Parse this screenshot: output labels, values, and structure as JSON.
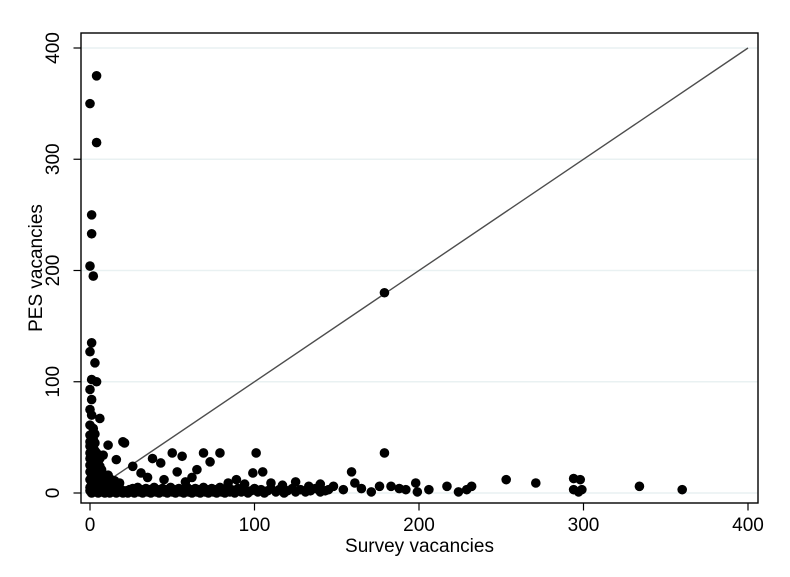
{
  "figure": {
    "background_color": "#ffffff"
  },
  "chart_data": {
    "type": "scatter",
    "title": "",
    "xlabel": "Survey vacancies",
    "ylabel": "PES vacancies",
    "x_ticks": [
      0,
      100,
      200,
      300,
      400
    ],
    "y_ticks": [
      0,
      100,
      200,
      300,
      400
    ],
    "xlim": [
      -5.5,
      406
    ],
    "ylim": [
      -9,
      413
    ],
    "grid": "horizontal-only",
    "legend": "none",
    "colors": {
      "marker": "#000000",
      "reference_line": "#4d4d4d",
      "gridline": "#e9f1f2",
      "axis": "#000000",
      "text": "#000000",
      "plot_background": "#ffffff"
    },
    "reference_line": {
      "from": [
        0,
        0
      ],
      "to": [
        400,
        400
      ],
      "meaning": "45-degree line"
    },
    "points": [
      [
        4,
        375
      ],
      [
        0,
        350
      ],
      [
        4,
        315
      ],
      [
        1,
        250
      ],
      [
        1,
        233
      ],
      [
        0,
        204
      ],
      [
        2,
        195
      ],
      [
        1,
        135
      ],
      [
        0,
        127
      ],
      [
        3,
        117
      ],
      [
        1,
        102
      ],
      [
        4,
        100
      ],
      [
        0,
        93
      ],
      [
        1,
        84
      ],
      [
        0,
        75
      ],
      [
        1,
        70
      ],
      [
        6,
        67
      ],
      [
        0,
        61
      ],
      [
        2,
        58
      ],
      [
        3,
        53
      ],
      [
        0,
        52
      ],
      [
        1,
        50
      ],
      [
        2,
        48
      ],
      [
        0,
        46
      ],
      [
        1,
        44
      ],
      [
        3,
        45
      ],
      [
        0,
        42
      ],
      [
        2,
        41
      ],
      [
        1,
        39
      ],
      [
        3,
        38
      ],
      [
        0,
        36
      ],
      [
        2,
        35
      ],
      [
        4,
        36
      ],
      [
        1,
        33
      ],
      [
        3,
        32
      ],
      [
        0,
        31
      ],
      [
        2,
        29
      ],
      [
        4,
        30
      ],
      [
        6,
        31
      ],
      [
        1,
        27
      ],
      [
        3,
        26
      ],
      [
        5,
        27
      ],
      [
        0,
        25
      ],
      [
        2,
        24
      ],
      [
        4,
        23
      ],
      [
        6,
        24
      ],
      [
        1,
        22
      ],
      [
        3,
        21
      ],
      [
        5,
        20
      ],
      [
        7,
        21
      ],
      [
        0,
        19
      ],
      [
        2,
        18
      ],
      [
        4,
        17
      ],
      [
        6,
        16
      ],
      [
        8,
        17
      ],
      [
        1,
        15
      ],
      [
        3,
        14
      ],
      [
        5,
        13
      ],
      [
        7,
        14
      ],
      [
        9,
        15
      ],
      [
        11,
        16
      ],
      [
        0,
        12
      ],
      [
        2,
        11
      ],
      [
        4,
        10
      ],
      [
        6,
        11
      ],
      [
        8,
        10
      ],
      [
        10,
        12
      ],
      [
        12,
        13
      ],
      [
        1,
        8
      ],
      [
        3,
        9
      ],
      [
        5,
        7
      ],
      [
        7,
        8
      ],
      [
        9,
        9
      ],
      [
        11,
        7
      ],
      [
        13,
        9
      ],
      [
        15,
        11
      ],
      [
        0,
        5
      ],
      [
        2,
        6
      ],
      [
        4,
        4
      ],
      [
        6,
        5
      ],
      [
        8,
        6
      ],
      [
        10,
        4
      ],
      [
        12,
        5
      ],
      [
        14,
        6
      ],
      [
        16,
        8
      ],
      [
        18,
        9
      ],
      [
        0,
        2
      ],
      [
        1,
        0
      ],
      [
        2,
        3
      ],
      [
        3,
        1
      ],
      [
        4,
        2
      ],
      [
        5,
        0
      ],
      [
        6,
        3
      ],
      [
        7,
        1
      ],
      [
        8,
        2
      ],
      [
        9,
        0
      ],
      [
        10,
        1
      ],
      [
        11,
        3
      ],
      [
        12,
        0
      ],
      [
        13,
        2
      ],
      [
        14,
        1
      ],
      [
        15,
        3
      ],
      [
        16,
        0
      ],
      [
        17,
        2
      ],
      [
        18,
        1
      ],
      [
        19,
        3
      ],
      [
        20,
        0
      ],
      [
        20,
        46
      ],
      [
        21,
        45
      ],
      [
        11,
        43
      ],
      [
        8,
        34
      ],
      [
        16,
        30
      ],
      [
        26,
        24
      ],
      [
        31,
        18
      ],
      [
        35,
        14
      ],
      [
        38,
        31
      ],
      [
        43,
        27
      ],
      [
        45,
        12
      ],
      [
        50,
        36
      ],
      [
        53,
        19
      ],
      [
        56,
        33
      ],
      [
        58,
        10
      ],
      [
        62,
        14
      ],
      [
        65,
        21
      ],
      [
        69,
        36
      ],
      [
        73,
        28
      ],
      [
        79,
        36
      ],
      [
        84,
        9
      ],
      [
        89,
        12
      ],
      [
        94,
        8
      ],
      [
        99,
        18
      ],
      [
        101,
        36
      ],
      [
        105,
        19
      ],
      [
        110,
        9
      ],
      [
        117,
        7
      ],
      [
        125,
        10
      ],
      [
        133,
        6
      ],
      [
        140,
        8
      ],
      [
        22,
        2
      ],
      [
        23,
        0
      ],
      [
        24,
        3
      ],
      [
        25,
        1
      ],
      [
        26,
        4
      ],
      [
        27,
        0
      ],
      [
        28,
        2
      ],
      [
        29,
        5
      ],
      [
        30,
        1
      ],
      [
        31,
        3
      ],
      [
        32,
        0
      ],
      [
        33,
        2
      ],
      [
        34,
        4
      ],
      [
        35,
        1
      ],
      [
        36,
        3
      ],
      [
        37,
        0
      ],
      [
        38,
        2
      ],
      [
        39,
        5
      ],
      [
        40,
        1
      ],
      [
        41,
        3
      ],
      [
        42,
        0
      ],
      [
        43,
        2
      ],
      [
        44,
        4
      ],
      [
        45,
        1
      ],
      [
        46,
        3
      ],
      [
        47,
        0
      ],
      [
        48,
        2
      ],
      [
        49,
        5
      ],
      [
        50,
        1
      ],
      [
        51,
        3
      ],
      [
        52,
        0
      ],
      [
        53,
        2
      ],
      [
        54,
        4
      ],
      [
        55,
        1
      ],
      [
        56,
        3
      ],
      [
        57,
        0
      ],
      [
        58,
        2
      ],
      [
        59,
        5
      ],
      [
        60,
        1
      ],
      [
        61,
        3
      ],
      [
        62,
        0
      ],
      [
        63,
        2
      ],
      [
        64,
        4
      ],
      [
        65,
        1
      ],
      [
        66,
        3
      ],
      [
        67,
        0
      ],
      [
        68,
        2
      ],
      [
        69,
        5
      ],
      [
        70,
        1
      ],
      [
        71,
        3
      ],
      [
        72,
        0
      ],
      [
        73,
        2
      ],
      [
        74,
        4
      ],
      [
        75,
        1
      ],
      [
        76,
        3
      ],
      [
        77,
        0
      ],
      [
        78,
        2
      ],
      [
        79,
        5
      ],
      [
        80,
        1
      ],
      [
        81,
        3
      ],
      [
        82,
        0
      ],
      [
        83,
        2
      ],
      [
        84,
        4
      ],
      [
        85,
        1
      ],
      [
        86,
        3
      ],
      [
        88,
        0
      ],
      [
        89,
        2
      ],
      [
        90,
        4
      ],
      [
        92,
        1
      ],
      [
        94,
        3
      ],
      [
        96,
        0
      ],
      [
        98,
        2
      ],
      [
        100,
        4
      ],
      [
        102,
        1
      ],
      [
        104,
        3
      ],
      [
        106,
        0
      ],
      [
        108,
        2
      ],
      [
        110,
        4
      ],
      [
        113,
        1
      ],
      [
        115,
        3
      ],
      [
        118,
        0
      ],
      [
        120,
        2
      ],
      [
        123,
        4
      ],
      [
        125,
        1
      ],
      [
        128,
        3
      ],
      [
        131,
        1
      ],
      [
        134,
        2
      ],
      [
        137,
        4
      ],
      [
        140,
        1
      ],
      [
        143,
        2
      ],
      [
        145,
        3
      ],
      [
        148,
        6
      ],
      [
        154,
        3
      ],
      [
        159,
        19
      ],
      [
        161,
        9
      ],
      [
        165,
        4
      ],
      [
        171,
        1
      ],
      [
        176,
        6
      ],
      [
        179,
        36
      ],
      [
        179,
        180
      ],
      [
        183,
        6
      ],
      [
        188,
        4
      ],
      [
        192,
        3
      ],
      [
        198,
        9
      ],
      [
        199,
        1
      ],
      [
        206,
        3
      ],
      [
        217,
        6
      ],
      [
        224,
        1
      ],
      [
        229,
        3
      ],
      [
        232,
        6
      ],
      [
        253,
        12
      ],
      [
        271,
        9
      ],
      [
        294,
        3
      ],
      [
        294,
        13
      ],
      [
        297,
        1
      ],
      [
        298,
        12
      ],
      [
        299,
        3
      ],
      [
        334,
        6
      ],
      [
        360,
        3
      ]
    ]
  }
}
